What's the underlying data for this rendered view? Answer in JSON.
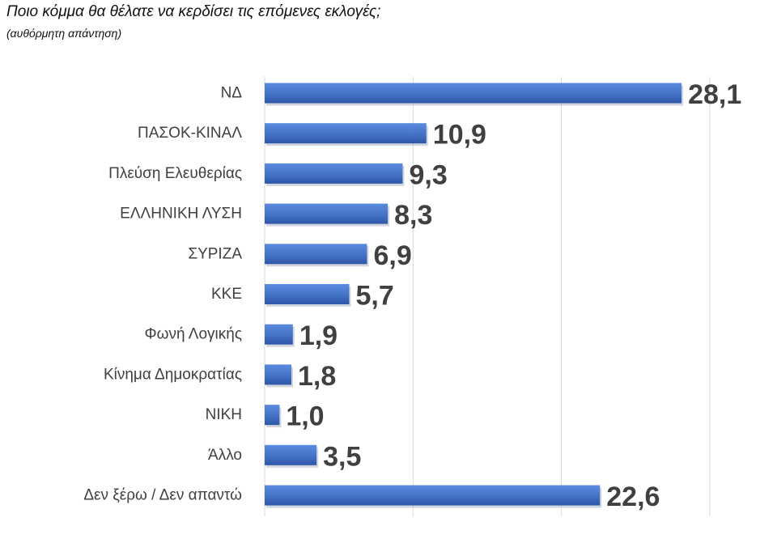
{
  "chart_data": {
    "type": "bar",
    "orientation": "horizontal",
    "title": "Ποιο κόμμα θα θέλατε να κερδίσει τις επόμενες εκλογές;",
    "subtitle": "(αυθόρμητη απάντηση)",
    "categories": [
      "ΝΔ",
      "ΠΑΣΟΚ-ΚΙΝΑΛ",
      "Πλεύση Ελευθερίας",
      "ΕΛΛΗΝΙΚΗ ΛΥΣΗ",
      "ΣΥΡΙΖΑ",
      "ΚΚΕ",
      "Φωνή Λογικής",
      "Κίνημα Δημοκρατίας",
      "ΝΙΚΗ",
      "Άλλο",
      "Δεν ξέρω / Δεν απαντώ"
    ],
    "values": [
      28.1,
      10.9,
      9.3,
      8.3,
      6.9,
      5.7,
      1.9,
      1.8,
      1.0,
      3.5,
      22.6
    ],
    "value_labels": [
      "28,1",
      "10,9",
      "9,3",
      "8,3",
      "6,9",
      "5,7",
      "1,9",
      "1,8",
      "1,0",
      "3,5",
      "22,6"
    ],
    "xlim": [
      0,
      30
    ],
    "gridlines": [
      0,
      10,
      20,
      30
    ],
    "grid": true,
    "legend": "none",
    "bar_color": "#4472C4"
  }
}
